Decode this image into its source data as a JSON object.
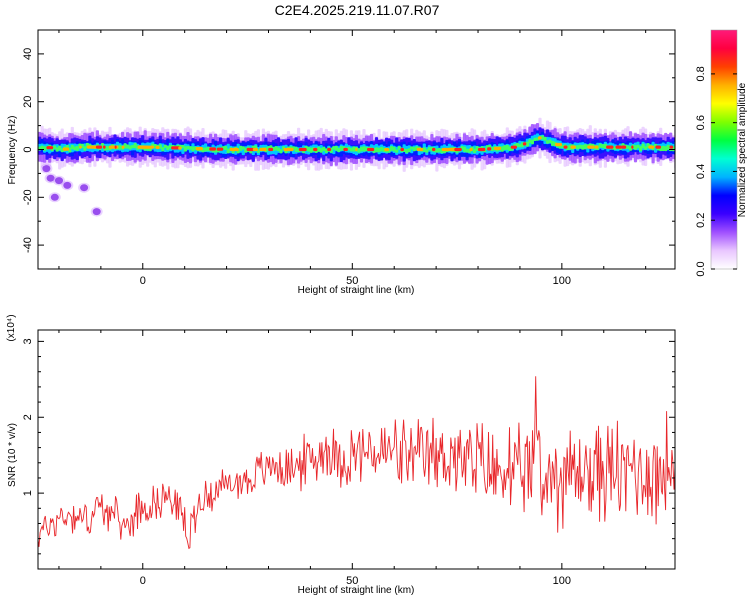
{
  "title": "C2E4.2025.219.11.07.R07",
  "chart_data": [
    {
      "type": "heatmap",
      "xlabel": "Height of straight line (km)",
      "ylabel": "Frequency (Hz)",
      "xlim": [
        -25,
        127
      ],
      "ylim": [
        -50,
        50
      ],
      "xticks": [
        0,
        50,
        100
      ],
      "xtick_labels": [
        "0",
        "50",
        "100"
      ],
      "yticks": [
        -40,
        -20,
        0,
        20,
        40
      ],
      "ytick_labels": [
        "-40",
        "-20",
        "0",
        "20",
        "40"
      ],
      "ridge": {
        "x": [
          -24,
          -20,
          -15,
          -10,
          0,
          20,
          40,
          60,
          80,
          88,
          92,
          94,
          97,
          100,
          110,
          127
        ],
        "freq": [
          1,
          0,
          1,
          1,
          1,
          0,
          0,
          0,
          0,
          1,
          3,
          5,
          3,
          1,
          1,
          1
        ]
      },
      "low_freq_blobs": [
        {
          "x": -23,
          "freq": -8
        },
        {
          "x": -22,
          "freq": -12
        },
        {
          "x": -20,
          "freq": -13
        },
        {
          "x": -18,
          "freq": -15
        },
        {
          "x": -21,
          "freq": -20
        },
        {
          "x": -14,
          "freq": -16
        },
        {
          "x": -11,
          "freq": -26
        }
      ],
      "colorbar": {
        "label": "Normalized spectral amplitude",
        "ticks": [
          0.0,
          0.2,
          0.4,
          0.6,
          0.8
        ],
        "tick_labels": [
          "0.0",
          "0.2",
          "0.4",
          "0.6",
          "0.8"
        ],
        "range": [
          0,
          0.98
        ],
        "colormap": [
          "#ffffff",
          "#e9c6ff",
          "#a050ff",
          "#3a00ff",
          "#0000ff",
          "#00b4ff",
          "#00ffd2",
          "#00ff40",
          "#80ff00",
          "#ffff00",
          "#ffb000",
          "#ff4000",
          "#ff0040",
          "#ff1a7a"
        ]
      },
      "grid": false
    },
    {
      "type": "line",
      "xlabel": "Height of straight line (km)",
      "ylabel": "SNR (10 * v/v)",
      "multiplier": "(x10⁴)",
      "xlim": [
        -25,
        127
      ],
      "ylim": [
        0,
        3.15
      ],
      "xticks": [
        0,
        50,
        100
      ],
      "xtick_labels": [
        "0",
        "50",
        "100"
      ],
      "yticks": [
        1,
        2,
        3
      ],
      "ytick_labels": [
        "1",
        "2",
        "3"
      ],
      "color": "#e8262a",
      "series": [
        {
          "x": [
            -25,
            -22,
            -19,
            -16,
            -13,
            -10,
            -7,
            -4,
            -1,
            2,
            5,
            8,
            10,
            11,
            12,
            14,
            17,
            20,
            23,
            26,
            29,
            32,
            35,
            38,
            41,
            44,
            47,
            50,
            53,
            56,
            59,
            62,
            65,
            68,
            71,
            74,
            77,
            80,
            83,
            85,
            87,
            89,
            91,
            93,
            94,
            95,
            97,
            99,
            101,
            103,
            105,
            107,
            109,
            111,
            113,
            115,
            117,
            119,
            121,
            123,
            125,
            127
          ],
          "values": [
            0.45,
            0.6,
            0.7,
            0.72,
            0.65,
            0.85,
            0.7,
            0.55,
            0.8,
            0.85,
            0.95,
            0.9,
            0.6,
            0.3,
            0.7,
            0.9,
            1.05,
            1.1,
            1.15,
            1.2,
            1.3,
            1.4,
            1.3,
            1.4,
            1.45,
            1.6,
            1.45,
            1.5,
            1.55,
            1.5,
            1.55,
            1.5,
            1.4,
            1.5,
            1.45,
            1.55,
            1.35,
            1.4,
            1.3,
            1.25,
            1.4,
            1.1,
            1.3,
            1.2,
            2.2,
            1.0,
            1.3,
            1.2,
            1.3,
            1.2,
            1.35,
            1.2,
            1.35,
            1.25,
            1.3,
            1.2,
            1.4,
            1.25,
            1.3,
            1.2,
            1.4,
            1.3
          ]
        }
      ],
      "grid": false
    }
  ]
}
